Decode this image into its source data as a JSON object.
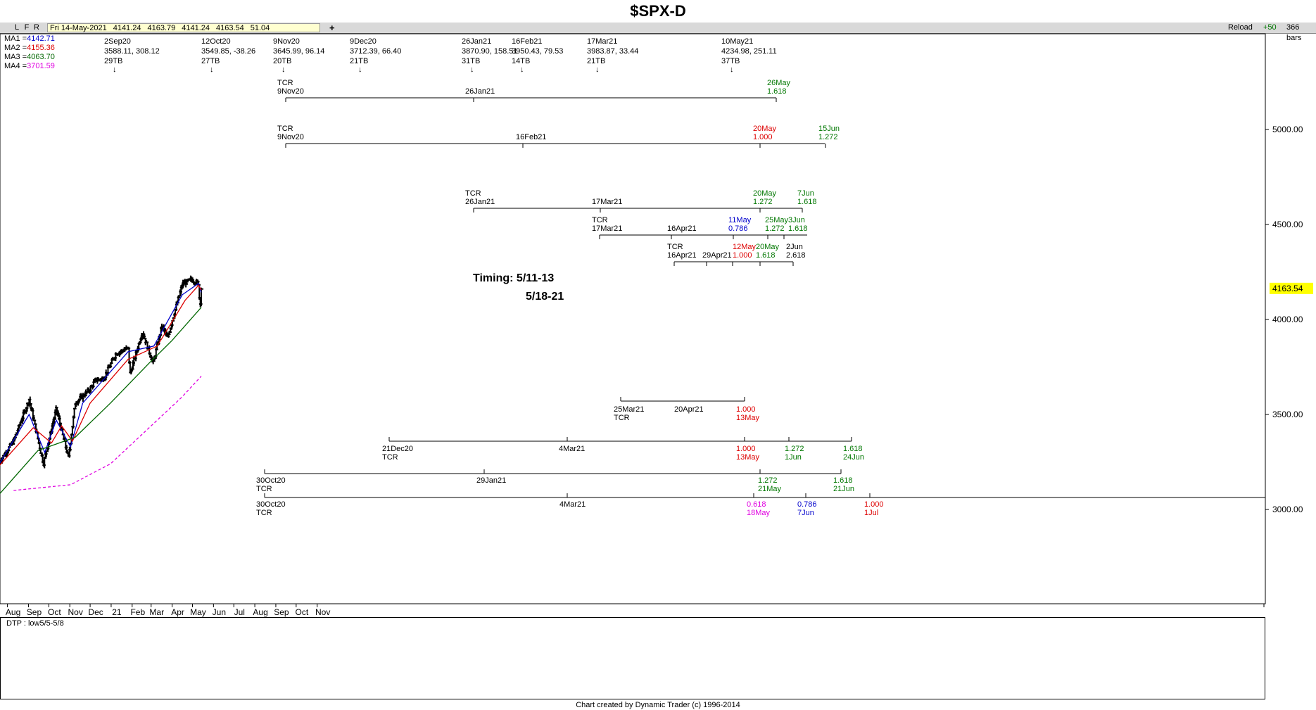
{
  "title": "$SPX-D",
  "toolbar": {
    "buttons": [
      "L",
      "F",
      "R"
    ],
    "date": "Fri 14-May-2021",
    "open": "4141.24",
    "high": "4163.79",
    "low": "4141.24",
    "close": "4163.54",
    "change": "51.04",
    "plus": "+",
    "reload": "Reload",
    "plus50": "+50",
    "bars": "366 bars"
  },
  "moving_averages": [
    {
      "label": "MA1",
      "value": "4142.71",
      "color": "#0000cc"
    },
    {
      "label": "MA2",
      "value": "4155.36",
      "color": "#dd0000"
    },
    {
      "label": "MA3",
      "value": "4063.70",
      "color": "#006600"
    },
    {
      "label": "MA4",
      "value": "3701.59",
      "color": "#e000e0"
    }
  ],
  "swing_labels": [
    {
      "date": "2Sep20",
      "text": "3588.11, 308.12",
      "bars": "29TB"
    },
    {
      "date": "12Oct20",
      "text": "3549.85, -38.26",
      "bars": "27TB"
    },
    {
      "date": "9Nov20",
      "text": "3645.99, 96.14",
      "bars": "20TB"
    },
    {
      "date": "9Dec20",
      "text": "3712.39, 66.40",
      "bars": "21TB"
    },
    {
      "date": "26Jan21",
      "text": "3870.90, 158.51",
      "bars": "31TB"
    },
    {
      "date": "16Feb21",
      "text": "3950.43, 79.53",
      "bars": "14TB"
    },
    {
      "date": "17Mar21",
      "text": "3983.87, 33.44",
      "bars": "21TB"
    },
    {
      "date": "10May21",
      "text": "4234.98, 251.11",
      "bars": "37TB"
    }
  ],
  "annotations": {
    "timing_1": "Timing: 5/11-13",
    "timing_2": "5/18-21",
    "last_price": "4163.54",
    "dtp": "DTP : low5/5-5/8",
    "credit": "Chart created by Dynamic Trader  (c)  1996-2014"
  },
  "projections": [
    {
      "labels": [
        {
          "t": "TCR",
          "c": "#000"
        },
        {
          "t": "9Nov20",
          "c": "#000"
        },
        {
          "t": "26Jan21",
          "c": "#000"
        },
        {
          "t": "26May",
          "c": "#007700"
        },
        {
          "t": "1.618",
          "c": "#007700"
        }
      ]
    },
    {
      "labels": [
        {
          "t": "TCR",
          "c": "#000"
        },
        {
          "t": "9Nov20",
          "c": "#000"
        },
        {
          "t": "16Feb21",
          "c": "#000"
        },
        {
          "t": "20May",
          "c": "#dd0000"
        },
        {
          "t": "1.000",
          "c": "#dd0000"
        },
        {
          "t": "15Jun",
          "c": "#007700"
        },
        {
          "t": "1.272",
          "c": "#007700"
        }
      ]
    },
    {
      "labels": [
        {
          "t": "TCR",
          "c": "#000"
        },
        {
          "t": "26Jan21",
          "c": "#000"
        },
        {
          "t": "17Mar21",
          "c": "#000"
        },
        {
          "t": "20May",
          "c": "#007700"
        },
        {
          "t": "1.272",
          "c": "#007700"
        },
        {
          "t": "7Jun",
          "c": "#007700"
        },
        {
          "t": "1.618",
          "c": "#007700"
        }
      ]
    },
    {
      "labels": [
        {
          "t": "TCR",
          "c": "#000"
        },
        {
          "t": "17Mar21",
          "c": "#000"
        },
        {
          "t": "16Apr21",
          "c": "#000"
        },
        {
          "t": "11May",
          "c": "#0000cc"
        },
        {
          "t": "0.786",
          "c": "#0000cc"
        },
        {
          "t": "25May",
          "c": "#007700"
        },
        {
          "t": "1.272",
          "c": "#007700"
        },
        {
          "t": "3Jun",
          "c": "#007700"
        },
        {
          "t": "1.618",
          "c": "#007700"
        }
      ]
    },
    {
      "labels": [
        {
          "t": "TCR",
          "c": "#000"
        },
        {
          "t": "16Apr21",
          "c": "#000"
        },
        {
          "t": "29Apr21",
          "c": "#000"
        },
        {
          "t": "12May",
          "c": "#dd0000"
        },
        {
          "t": "1.000",
          "c": "#dd0000"
        },
        {
          "t": "20May",
          "c": "#007700"
        },
        {
          "t": "1.618",
          "c": "#007700"
        },
        {
          "t": "2Jun",
          "c": "#000"
        },
        {
          "t": "2.618",
          "c": "#000"
        }
      ]
    },
    {
      "labels": [
        {
          "t": "25Mar21",
          "c": "#000"
        },
        {
          "t": "TCR",
          "c": "#000"
        },
        {
          "t": "20Apr21",
          "c": "#000"
        },
        {
          "t": "1.000",
          "c": "#dd0000"
        },
        {
          "t": "13May",
          "c": "#dd0000"
        }
      ]
    },
    {
      "labels": [
        {
          "t": "21Dec20",
          "c": "#000"
        },
        {
          "t": "TCR",
          "c": "#000"
        },
        {
          "t": "4Mar21",
          "c": "#000"
        },
        {
          "t": "1.000",
          "c": "#dd0000"
        },
        {
          "t": "13May",
          "c": "#dd0000"
        },
        {
          "t": "1.272",
          "c": "#007700"
        },
        {
          "t": "1Jun",
          "c": "#007700"
        },
        {
          "t": "1.618",
          "c": "#007700"
        },
        {
          "t": "24Jun",
          "c": "#007700"
        }
      ]
    },
    {
      "labels": [
        {
          "t": "30Oct20",
          "c": "#000"
        },
        {
          "t": "TCR",
          "c": "#000"
        },
        {
          "t": "29Jan21",
          "c": "#000"
        },
        {
          "t": "1.272",
          "c": "#007700"
        },
        {
          "t": "21May",
          "c": "#007700"
        },
        {
          "t": "1.618",
          "c": "#007700"
        },
        {
          "t": "21Jun",
          "c": "#007700"
        }
      ]
    },
    {
      "labels": [
        {
          "t": "30Oct20",
          "c": "#000"
        },
        {
          "t": "TCR",
          "c": "#000"
        },
        {
          "t": "4Mar21",
          "c": "#000"
        },
        {
          "t": "0.618",
          "c": "#e000e0"
        },
        {
          "t": "18May",
          "c": "#e000e0"
        },
        {
          "t": "0.786",
          "c": "#0000cc"
        },
        {
          "t": "7Jun",
          "c": "#0000cc"
        },
        {
          "t": "1.000",
          "c": "#dd0000"
        },
        {
          "t": "1Jul",
          "c": "#dd0000"
        }
      ]
    }
  ],
  "chart_data": {
    "type": "ohlc",
    "title": "$SPX-D",
    "x_tick_labels": [
      "Aug",
      "Sep",
      "Oct",
      "Nov",
      "Dec",
      "21",
      "Feb",
      "Mar",
      "Apr",
      "May",
      "Jun",
      "Jul",
      "Aug",
      "Sep",
      "Oct",
      "Nov"
    ],
    "y_tick_labels": [
      "5000.00",
      "4500.00",
      "4000.00",
      "3500.00",
      "3000.00"
    ],
    "ylim": [
      2550,
      5470
    ],
    "grid": false,
    "price_key_points": [
      {
        "date": "2020-07-20",
        "close": 3250
      },
      {
        "date": "2020-08-10",
        "close": 3360
      },
      {
        "date": "2020-09-02",
        "close": 3580
      },
      {
        "date": "2020-09-23",
        "close": 3240
      },
      {
        "date": "2020-10-12",
        "close": 3530
      },
      {
        "date": "2020-10-30",
        "close": 3270
      },
      {
        "date": "2020-11-09",
        "close": 3560
      },
      {
        "date": "2020-11-30",
        "close": 3630
      },
      {
        "date": "2020-12-09",
        "close": 3680
      },
      {
        "date": "2020-12-21",
        "close": 3690
      },
      {
        "date": "2021-01-08",
        "close": 3820
      },
      {
        "date": "2021-01-26",
        "close": 3850
      },
      {
        "date": "2021-01-29",
        "close": 3715
      },
      {
        "date": "2021-02-16",
        "close": 3935
      },
      {
        "date": "2021-03-04",
        "close": 3770
      },
      {
        "date": "2021-03-17",
        "close": 3970
      },
      {
        "date": "2021-03-25",
        "close": 3900
      },
      {
        "date": "2021-04-16",
        "close": 4185
      },
      {
        "date": "2021-04-29",
        "close": 4210
      },
      {
        "date": "2021-05-10",
        "close": 4190
      },
      {
        "date": "2021-05-12",
        "close": 4063
      },
      {
        "date": "2021-05-14",
        "close": 4163.54
      }
    ],
    "ma_series": [
      {
        "label": "MA1",
        "points": [
          [
            "2020-07-20",
            3240
          ],
          [
            "2020-09-02",
            3500
          ],
          [
            "2020-09-25",
            3300
          ],
          [
            "2020-10-12",
            3470
          ],
          [
            "2020-11-02",
            3330
          ],
          [
            "2020-11-20",
            3560
          ],
          [
            "2021-01-26",
            3830
          ],
          [
            "2021-03-05",
            3860
          ],
          [
            "2021-04-16",
            4130
          ],
          [
            "2021-05-10",
            4190
          ],
          [
            "2021-05-14",
            4142.71
          ]
        ]
      },
      {
        "label": "MA2",
        "points": [
          [
            "2020-07-20",
            3230
          ],
          [
            "2020-09-08",
            3430
          ],
          [
            "2020-10-05",
            3350
          ],
          [
            "2020-10-20",
            3440
          ],
          [
            "2020-11-05",
            3360
          ],
          [
            "2020-12-01",
            3560
          ],
          [
            "2021-01-26",
            3790
          ],
          [
            "2021-03-10",
            3860
          ],
          [
            "2021-04-20",
            4100
          ],
          [
            "2021-05-10",
            4180
          ],
          [
            "2021-05-14",
            4155.36
          ]
        ]
      },
      {
        "label": "MA3",
        "points": [
          [
            "2020-07-20",
            3080
          ],
          [
            "2020-09-15",
            3310
          ],
          [
            "2020-11-09",
            3380
          ],
          [
            "2020-12-31",
            3560
          ],
          [
            "2021-02-26",
            3770
          ],
          [
            "2021-04-01",
            3890
          ],
          [
            "2021-05-14",
            4063.7
          ]
        ]
      },
      {
        "label": "MA4",
        "points": [
          [
            "2020-08-10",
            3100
          ],
          [
            "2020-11-02",
            3130
          ],
          [
            "2020-12-31",
            3240
          ],
          [
            "2021-02-26",
            3430
          ],
          [
            "2021-04-15",
            3590
          ],
          [
            "2021-05-14",
            3701.59
          ]
        ]
      }
    ]
  }
}
